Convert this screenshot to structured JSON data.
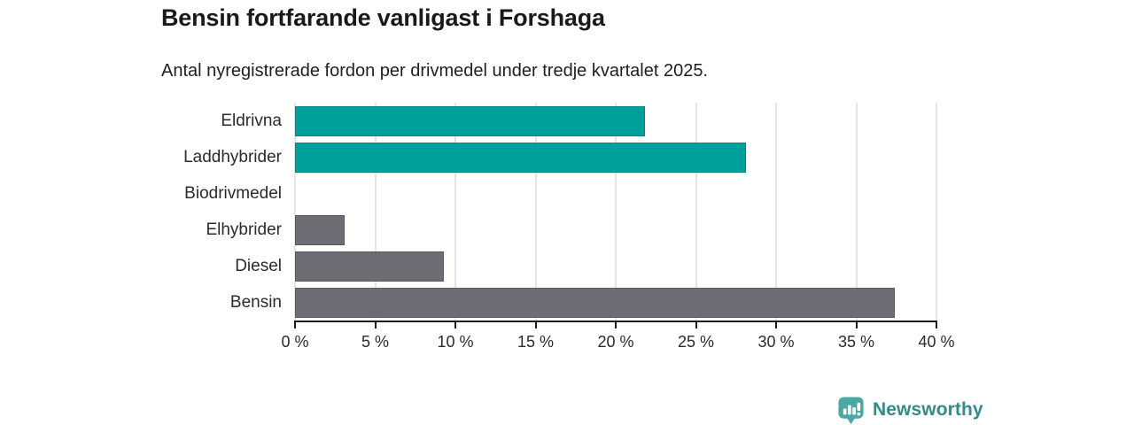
{
  "header": {
    "title": "Bensin fortfarande vanligast i Forshaga",
    "subtitle": "Antal nyregistrerade fordon per drivmedel under tredje kvartalet 2025."
  },
  "chart_data": {
    "type": "bar",
    "orientation": "horizontal",
    "categories": [
      "Eldrivna",
      "Laddhybrider",
      "Biodrivmedel",
      "Elhybrider",
      "Diesel",
      "Bensin"
    ],
    "values": [
      21.8,
      28.1,
      0,
      3.1,
      9.3,
      37.4
    ],
    "bar_colors": [
      "#00a19a",
      "#00a19a",
      "#6d6d73",
      "#6d6d73",
      "#6d6d73",
      "#6d6d73"
    ],
    "title": "Bensin fortfarande vanligast i Forshaga",
    "subtitle": "Antal nyregistrerade fordon per drivmedel under tredje kvartalet 2025.",
    "xlabel": "",
    "ylabel": "",
    "xlim": [
      0,
      40
    ],
    "x_ticks": [
      0,
      5,
      10,
      15,
      20,
      25,
      30,
      35,
      40
    ],
    "x_tick_labels": [
      "0 %",
      "5 %",
      "10 %",
      "15 %",
      "20 %",
      "25 %",
      "30 %",
      "35 %",
      "40 %"
    ],
    "grid": "vertical",
    "legend": false,
    "unit": "percent"
  },
  "colors": {
    "teal": "#00a19a",
    "gray": "#6d6d73",
    "gridline": "#e4e4e4",
    "axis": "#1c1c1c",
    "logo_icon": "#4ca8a3",
    "logo_text": "#318c89"
  },
  "footer": {
    "brand": "Newsworthy"
  }
}
